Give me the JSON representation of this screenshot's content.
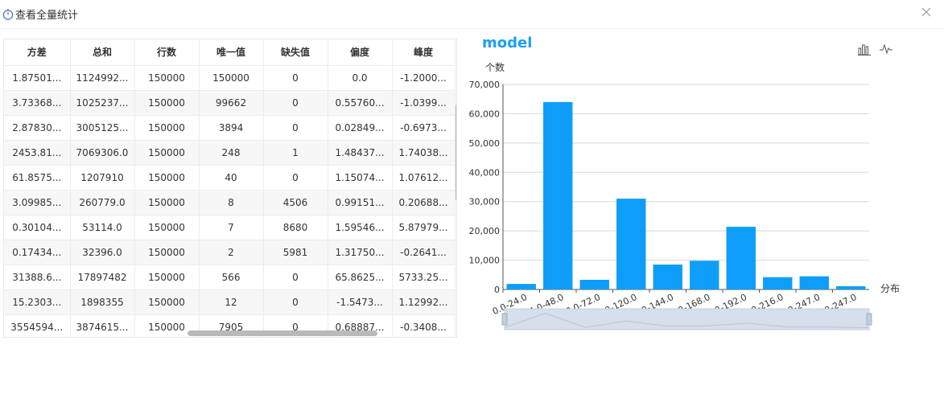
{
  "window": {
    "title": "查看全量统计",
    "title_icon": "stopwatch-icon",
    "close_icon": "close-icon"
  },
  "table": {
    "columns": [
      "方差",
      "总和",
      "行数",
      "唯一值",
      "缺失值",
      "偏度",
      "峰度"
    ],
    "rows": [
      [
        "1.87501...",
        "1124992...",
        "150000",
        "150000",
        "0",
        "0.0",
        "-1.2000..."
      ],
      [
        "3.73368...",
        "1025237...",
        "150000",
        "99662",
        "0",
        "0.55760...",
        "-1.0399..."
      ],
      [
        "2.87830...",
        "3005125...",
        "150000",
        "3894",
        "0",
        "0.02849...",
        "-0.6973..."
      ],
      [
        "2453.81...",
        "7069306.0",
        "150000",
        "248",
        "1",
        "1.48437...",
        "1.74038..."
      ],
      [
        "61.8575...",
        "1207910",
        "150000",
        "40",
        "0",
        "1.15074...",
        "1.07612..."
      ],
      [
        "3.09985...",
        "260779.0",
        "150000",
        "8",
        "4506",
        "0.99151...",
        "0.20688..."
      ],
      [
        "0.30104...",
        "53114.0",
        "150000",
        "7",
        "8680",
        "1.59546...",
        "5.87979..."
      ],
      [
        "0.17434...",
        "32396.0",
        "150000",
        "2",
        "5981",
        "1.31750...",
        "-0.2641..."
      ],
      [
        "31388.6...",
        "17897482",
        "150000",
        "566",
        "0",
        "65.8625...",
        "5733.25..."
      ],
      [
        "15.2303...",
        "1898355",
        "150000",
        "12",
        "0",
        "-1.5473...",
        "1.12992..."
      ],
      [
        "3554594...",
        "3874615...",
        "150000",
        "7905",
        "0",
        "0.68887...",
        "-0.3408..."
      ]
    ]
  },
  "chart_data": {
    "type": "bar",
    "title": "model",
    "ylabel": "个数",
    "xlabel": "分布",
    "categories": [
      "0.0-24.0",
      "24.0-48.0",
      "48.0-72.0",
      "96.0-120.0",
      "120.0-144.0",
      "144.0-168.0",
      "168.0-192.0",
      "192.0-216.0",
      "216.0-247.0",
      "247.0-247.0"
    ],
    "values": [
      1900,
      64000,
      3300,
      31000,
      8500,
      9800,
      21400,
      4200,
      4500,
      1100
    ],
    "ylim": [
      0,
      70000
    ],
    "yticks": [
      "0",
      "10,000",
      "20,000",
      "30,000",
      "40,000",
      "50,000",
      "60,000",
      "70,000"
    ],
    "grid": true,
    "bar_color": "#0e9ef9",
    "has_datazoom_slider": true
  },
  "toolbar": {
    "icons": [
      "bar-chart-icon",
      "line-chart-icon"
    ]
  },
  "colors": {
    "accent": "#1a9ff5",
    "bar": "#0e9ef9"
  }
}
